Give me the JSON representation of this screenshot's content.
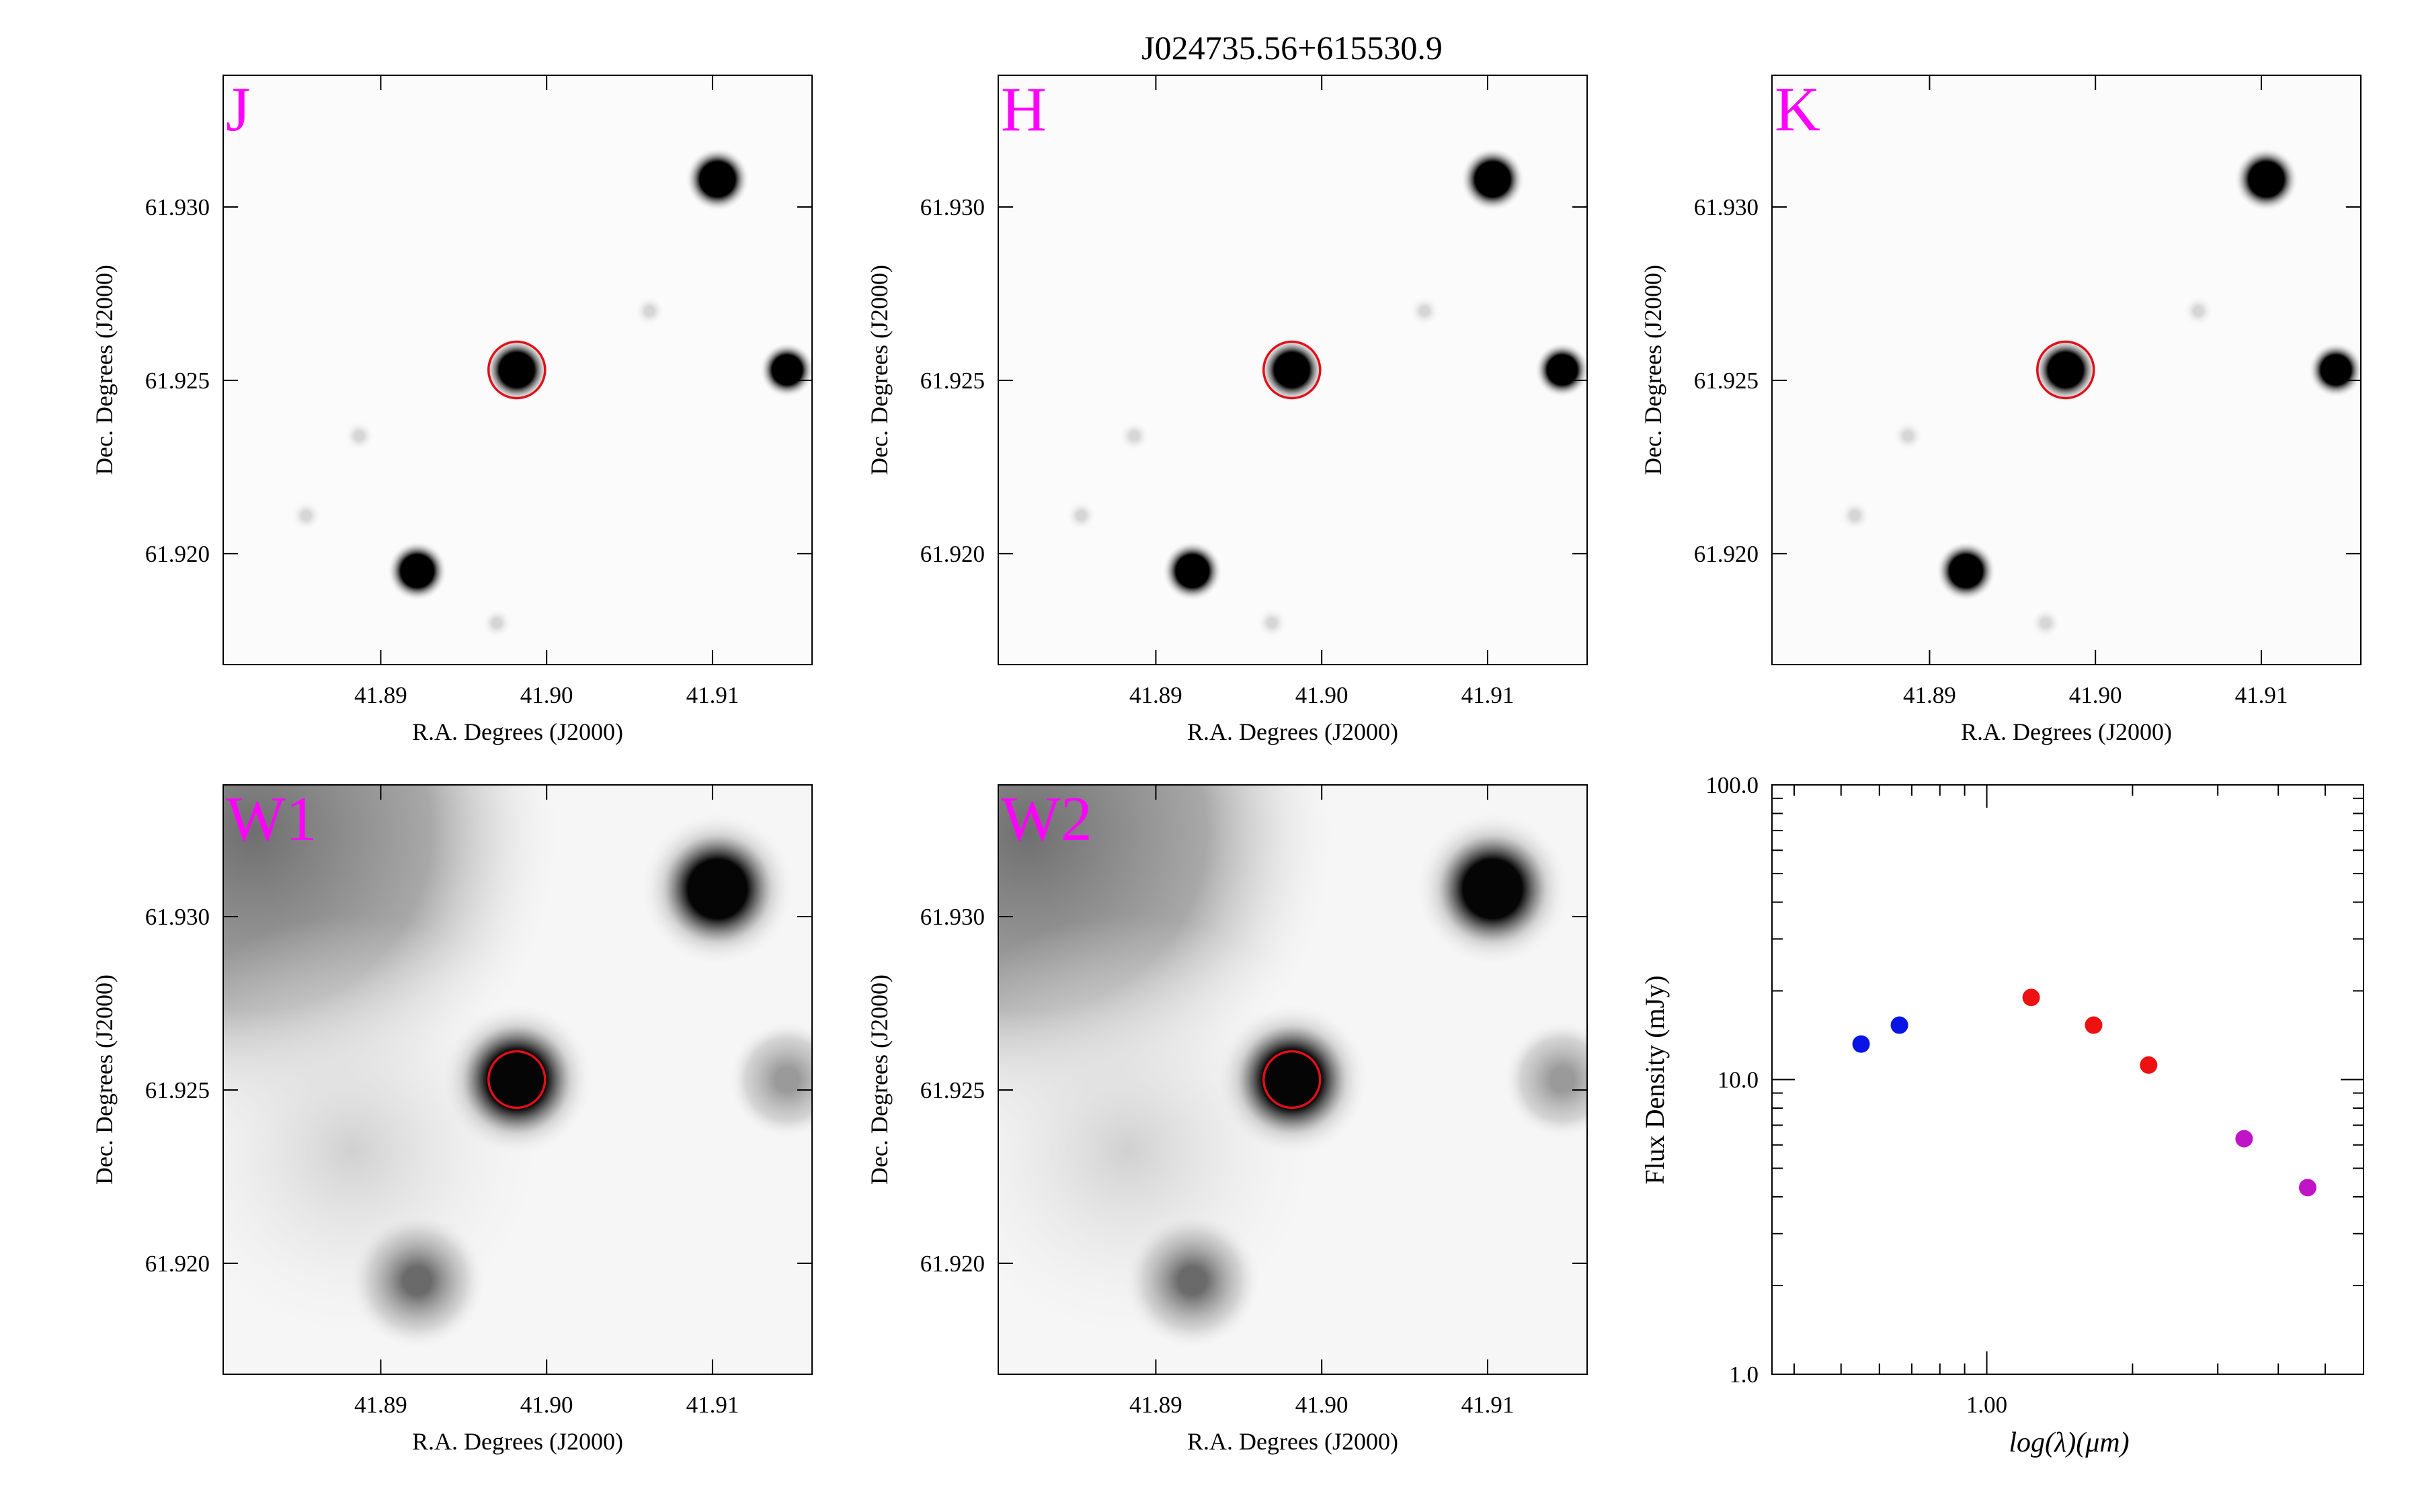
{
  "figure": {
    "title": "J024735.56+615530.9"
  },
  "panels": [
    {
      "band": "J",
      "style": "nir",
      "xlabel": "R.A. Degrees (J2000)",
      "ylabel": "Dec. Degrees (J2000)"
    },
    {
      "band": "H",
      "style": "nir",
      "xlabel": "R.A. Degrees (J2000)",
      "ylabel": "Dec. Degrees (J2000)"
    },
    {
      "band": "K",
      "style": "nir",
      "xlabel": "R.A. Degrees (J2000)",
      "ylabel": "Dec. Degrees (J2000)"
    },
    {
      "band": "W1",
      "style": "wise",
      "xlabel": "R.A. Degrees (J2000)",
      "ylabel": "Dec. Degrees (J2000)"
    },
    {
      "band": "W2",
      "style": "wise",
      "xlabel": "R.A. Degrees (J2000)",
      "ylabel": "Dec. Degrees (J2000)"
    }
  ],
  "image_axes": {
    "ra_range": [
      41.8805,
      41.916
    ],
    "dec_range": [
      61.9168,
      61.9338
    ],
    "ra_ticks": [
      "41.89",
      "41.90",
      "41.91"
    ],
    "dec_ticks": [
      "61.920",
      "61.925",
      "61.930"
    ],
    "target": {
      "ra": 41.8982,
      "dec": 61.9253,
      "marker_color": "#e0101a"
    },
    "sources": [
      {
        "ra": 41.8982,
        "dec": 61.9253,
        "strength": 1.0
      },
      {
        "ra": 41.9103,
        "dec": 61.9308,
        "strength": 1.0
      },
      {
        "ra": 41.9145,
        "dec": 61.9253,
        "strength": 0.55
      },
      {
        "ra": 41.8922,
        "dec": 61.9195,
        "strength": 0.8
      },
      {
        "ra": 41.897,
        "dec": 61.918,
        "strength": 0.12
      },
      {
        "ra": 41.8887,
        "dec": 61.9234,
        "strength": 0.08
      },
      {
        "ra": 41.8855,
        "dec": 61.9211,
        "strength": 0.08
      },
      {
        "ra": 41.9062,
        "dec": 61.927,
        "strength": 0.06
      }
    ]
  },
  "chart_data": {
    "type": "scatter",
    "xlabel": "log(λ)(μm)",
    "ylabel": "Flux Density (mJy)",
    "x_scale": "log",
    "y_scale": "log",
    "xlim": [
      0.36,
      6.0
    ],
    "ylim": [
      1.0,
      100.0
    ],
    "x_tick_labels": [
      "1.00"
    ],
    "y_tick_labels": [
      "1.0",
      "10.0",
      "100.0"
    ],
    "grid": false,
    "series": [
      {
        "color": "#0a14e6",
        "x": [
          0.55,
          0.66
        ],
        "y": [
          13.2,
          15.3
        ]
      },
      {
        "color": "#ee1111",
        "x": [
          1.235,
          1.662,
          2.159
        ],
        "y": [
          19.0,
          15.3,
          11.2
        ]
      },
      {
        "color": "#c014c8",
        "x": [
          3.4,
          4.6
        ],
        "y": [
          6.3,
          4.3
        ]
      }
    ]
  }
}
